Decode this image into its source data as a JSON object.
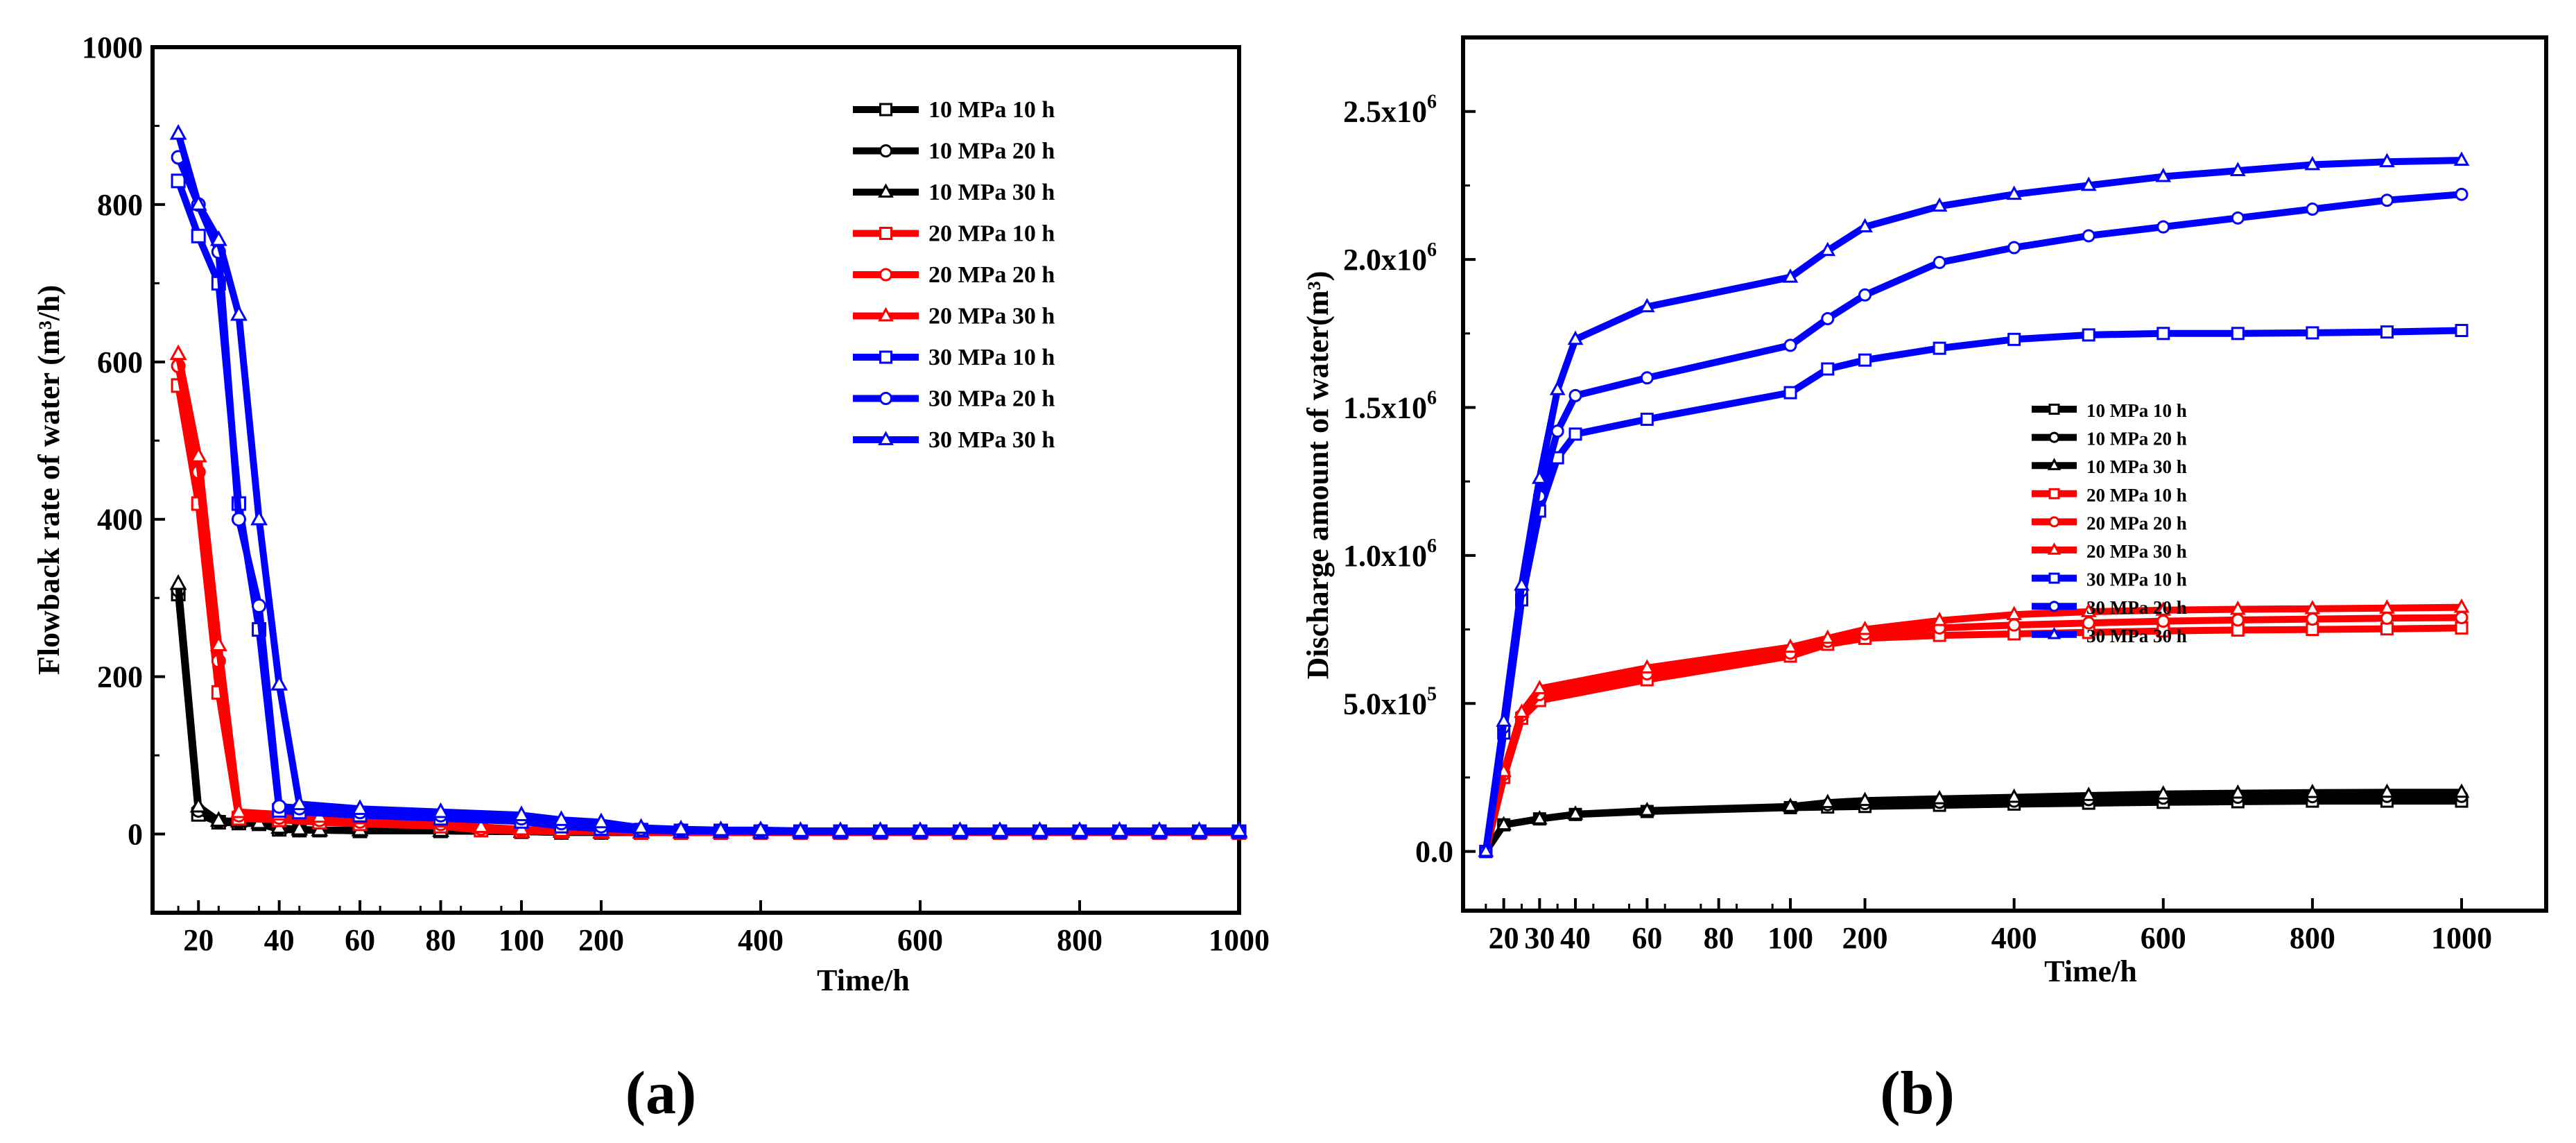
{
  "chart_data": [
    {
      "panel": "a",
      "type": "line",
      "caption": "(a)",
      "xlabel": "Time/h",
      "ylabel": "Flowback rate of water (m³/h)",
      "ylim": [
        -100,
        1000
      ],
      "x_ticks": [
        "20",
        "40",
        "60",
        "80",
        "100",
        "200",
        "400",
        "600",
        "800",
        "1000"
      ],
      "y_ticks": [
        "0",
        "200",
        "400",
        "600",
        "800",
        "1000"
      ],
      "x_note": "Broken x-axis: 10-100 h at linear scale, then 100-1000 h compressed",
      "series": [
        {
          "name": "10 MPa 10 h",
          "color": "#000000",
          "marker": "square",
          "x": [
            15,
            20,
            25,
            30,
            35,
            40,
            45,
            50,
            60,
            80,
            100,
            150,
            200,
            250,
            300,
            350,
            400,
            450,
            500,
            550,
            600,
            650,
            700,
            750,
            800,
            850,
            900,
            950,
            1000
          ],
          "y": [
            305,
            25,
            15,
            14,
            13,
            6,
            5,
            5,
            4,
            4,
            3,
            2,
            2,
            2,
            2,
            2,
            2,
            2,
            2,
            2,
            2,
            2,
            2,
            2,
            2,
            2,
            2,
            2,
            2
          ]
        },
        {
          "name": "10 MPa 20 h",
          "color": "#000000",
          "marker": "circle",
          "x": [
            15,
            20,
            25,
            30,
            35,
            40,
            45,
            50,
            60,
            80,
            100,
            150,
            200,
            250,
            300,
            350,
            400,
            450,
            500,
            550,
            600,
            650,
            700,
            750,
            800,
            850,
            900,
            950,
            1000
          ],
          "y": [
            310,
            30,
            16,
            15,
            13,
            7,
            5,
            5,
            4,
            4,
            3,
            2,
            2,
            2,
            2,
            2,
            2,
            2,
            2,
            2,
            2,
            2,
            2,
            2,
            2,
            2,
            2,
            2,
            2
          ]
        },
        {
          "name": "10 MPa 30 h",
          "color": "#000000",
          "marker": "triangle",
          "x": [
            15,
            20,
            25,
            30,
            35,
            40,
            45,
            50,
            60,
            80,
            100,
            150,
            200,
            250,
            300,
            350,
            400,
            450,
            500,
            550,
            600,
            650,
            700,
            750,
            800,
            850,
            900,
            950,
            1000
          ],
          "y": [
            318,
            35,
            17,
            16,
            14,
            8,
            6,
            5,
            5,
            4,
            3,
            3,
            2,
            2,
            2,
            2,
            2,
            2,
            2,
            2,
            2,
            2,
            2,
            2,
            2,
            2,
            2,
            2,
            2
          ]
        },
        {
          "name": "20 MPa 10 h",
          "color": "#ff0000",
          "marker": "square",
          "x": [
            15,
            20,
            25,
            30,
            40,
            50,
            60,
            80,
            90,
            100,
            150,
            200,
            250,
            300,
            350,
            400,
            450,
            500,
            550,
            600,
            650,
            700,
            750,
            800,
            850,
            900,
            950,
            1000
          ],
          "y": [
            570,
            420,
            180,
            20,
            18,
            15,
            13,
            10,
            5,
            4,
            3,
            3,
            2,
            2,
            2,
            2,
            2,
            2,
            2,
            2,
            2,
            2,
            2,
            2,
            2,
            2,
            2,
            2
          ]
        },
        {
          "name": "20 MPa 20 h",
          "color": "#ff0000",
          "marker": "circle",
          "x": [
            15,
            20,
            25,
            30,
            40,
            50,
            60,
            80,
            90,
            100,
            150,
            200,
            250,
            300,
            350,
            400,
            450,
            500,
            550,
            600,
            650,
            700,
            750,
            800,
            850,
            900,
            950,
            1000
          ],
          "y": [
            595,
            460,
            220,
            24,
            21,
            18,
            16,
            13,
            7,
            5,
            4,
            3,
            3,
            2,
            2,
            2,
            2,
            2,
            2,
            2,
            2,
            2,
            2,
            2,
            2,
            2,
            2,
            2
          ]
        },
        {
          "name": "20 MPa 30 h",
          "color": "#ff0000",
          "marker": "triangle",
          "x": [
            15,
            20,
            25,
            30,
            40,
            50,
            60,
            80,
            90,
            100,
            150,
            200,
            250,
            300,
            350,
            400,
            450,
            500,
            550,
            600,
            650,
            700,
            750,
            800,
            850,
            900,
            950,
            1000
          ],
          "y": [
            610,
            480,
            240,
            28,
            25,
            22,
            20,
            16,
            9,
            6,
            4,
            3,
            3,
            2,
            2,
            2,
            2,
            2,
            2,
            2,
            2,
            2,
            2,
            2,
            2,
            2,
            2,
            2
          ]
        },
        {
          "name": "30 MPa 10 h",
          "color": "#0000ff",
          "marker": "square",
          "x": [
            15,
            20,
            25,
            30,
            35,
            40,
            45,
            60,
            80,
            100,
            150,
            200,
            250,
            300,
            350,
            400,
            450,
            500,
            550,
            600,
            650,
            700,
            750,
            800,
            850,
            900,
            950,
            1000
          ],
          "y": [
            830,
            760,
            700,
            420,
            260,
            30,
            28,
            24,
            20,
            16,
            10,
            7,
            5,
            4,
            4,
            3,
            3,
            3,
            3,
            3,
            3,
            3,
            3,
            3,
            3,
            3,
            3,
            3
          ]
        },
        {
          "name": "30 MPa 20 h",
          "color": "#0000ff",
          "marker": "circle",
          "x": [
            15,
            20,
            25,
            30,
            35,
            40,
            45,
            60,
            80,
            100,
            150,
            200,
            250,
            300,
            350,
            400,
            450,
            500,
            550,
            600,
            650,
            700,
            750,
            800,
            850,
            900,
            950,
            1000
          ],
          "y": [
            860,
            800,
            740,
            400,
            290,
            35,
            33,
            28,
            24,
            20,
            14,
            10,
            6,
            5,
            4,
            4,
            3,
            3,
            3,
            3,
            3,
            3,
            3,
            3,
            3,
            3,
            3,
            3
          ]
        },
        {
          "name": "30 MPa 30 h",
          "color": "#0000ff",
          "marker": "triangle",
          "x": [
            15,
            20,
            25,
            30,
            35,
            40,
            45,
            60,
            80,
            100,
            150,
            200,
            250,
            300,
            350,
            400,
            450,
            500,
            550,
            600,
            650,
            700,
            750,
            800,
            850,
            900,
            950,
            1000
          ],
          "y": [
            890,
            800,
            755,
            660,
            400,
            190,
            38,
            32,
            28,
            24,
            18,
            15,
            8,
            6,
            5,
            5,
            4,
            4,
            4,
            4,
            4,
            4,
            4,
            4,
            4,
            4,
            4,
            4
          ]
        }
      ]
    },
    {
      "panel": "b",
      "type": "line",
      "caption": "(b)",
      "xlabel": "Time/h",
      "ylabel": "Discharge amount of water(m³)",
      "ylim": [
        -200000,
        2750000
      ],
      "x_ticks": [
        "20",
        "30",
        "40",
        "60",
        "80",
        "100",
        "200",
        "400",
        "600",
        "800",
        "1000"
      ],
      "y_ticks": [
        {
          "value": 0,
          "label": "0.0"
        },
        {
          "value": 500000,
          "label": "5.0x10",
          "exp": "5"
        },
        {
          "value": 1000000,
          "label": "1.0x10",
          "exp": "6"
        },
        {
          "value": 1500000,
          "label": "1.5x10",
          "exp": "6"
        },
        {
          "value": 2000000,
          "label": "2.0x10",
          "exp": "6"
        },
        {
          "value": 2500000,
          "label": "2.5x10",
          "exp": "6"
        }
      ],
      "x_note": "Broken x-axis: 10-100 h at linear scale, then 100-1000 h compressed",
      "series": [
        {
          "name": "10 MPa 10 h",
          "color": "#000000",
          "marker": "square",
          "x": [
            15,
            20,
            30,
            40,
            60,
            100,
            150,
            200,
            300,
            400,
            500,
            600,
            700,
            800,
            900,
            1000
          ],
          "y": [
            0,
            90000,
            110000,
            125000,
            135000,
            148000,
            150000,
            152000,
            156000,
            160000,
            163000,
            166000,
            168000,
            170000,
            170000,
            170000
          ]
        },
        {
          "name": "10 MPa 20 h",
          "color": "#000000",
          "marker": "circle",
          "x": [
            15,
            20,
            30,
            40,
            60,
            100,
            150,
            200,
            300,
            400,
            500,
            600,
            700,
            800,
            900,
            1000
          ],
          "y": [
            0,
            90000,
            110000,
            125000,
            136000,
            150000,
            158000,
            162000,
            166000,
            170000,
            175000,
            180000,
            183000,
            185000,
            186000,
            186000
          ]
        },
        {
          "name": "10 MPa 30 h",
          "color": "#000000",
          "marker": "triangle",
          "x": [
            15,
            20,
            30,
            40,
            60,
            100,
            150,
            200,
            300,
            400,
            500,
            600,
            700,
            800,
            900,
            1000
          ],
          "y": [
            0,
            90000,
            110000,
            126000,
            138000,
            152000,
            165000,
            172000,
            178000,
            183000,
            189000,
            194000,
            197000,
            199000,
            200000,
            200000
          ]
        },
        {
          "name": "20 MPa 10 h",
          "color": "#ff0000",
          "marker": "square",
          "x": [
            15,
            20,
            25,
            30,
            60,
            100,
            150,
            200,
            300,
            400,
            500,
            600,
            700,
            800,
            900,
            1000
          ],
          "y": [
            0,
            250000,
            450000,
            510000,
            580000,
            660000,
            700000,
            720000,
            730000,
            735000,
            740000,
            745000,
            748000,
            750000,
            752000,
            755000
          ]
        },
        {
          "name": "20 MPa 20 h",
          "color": "#ff0000",
          "marker": "circle",
          "x": [
            15,
            20,
            25,
            30,
            60,
            100,
            150,
            200,
            300,
            400,
            500,
            600,
            700,
            800,
            900,
            1000
          ],
          "y": [
            0,
            260000,
            460000,
            530000,
            600000,
            670000,
            710000,
            735000,
            755000,
            765000,
            772000,
            778000,
            782000,
            785000,
            788000,
            790000
          ]
        },
        {
          "name": "20 MPa 30 h",
          "color": "#ff0000",
          "marker": "triangle",
          "x": [
            15,
            20,
            25,
            30,
            60,
            100,
            150,
            200,
            300,
            400,
            500,
            600,
            700,
            800,
            900,
            1000
          ],
          "y": [
            0,
            270000,
            470000,
            550000,
            620000,
            690000,
            720000,
            750000,
            780000,
            800000,
            810000,
            815000,
            818000,
            820000,
            822000,
            825000
          ]
        },
        {
          "name": "30 MPa 10 h",
          "color": "#0000ff",
          "marker": "square",
          "x": [
            15,
            20,
            25,
            30,
            35,
            40,
            60,
            100,
            150,
            200,
            300,
            400,
            500,
            600,
            700,
            800,
            900,
            1000
          ],
          "y": [
            0,
            400000,
            850000,
            1150000,
            1330000,
            1410000,
            1460000,
            1550000,
            1630000,
            1660000,
            1700000,
            1730000,
            1745000,
            1750000,
            1750000,
            1752000,
            1755000,
            1760000
          ]
        },
        {
          "name": "30 MPa 20 h",
          "color": "#0000ff",
          "marker": "circle",
          "x": [
            15,
            20,
            25,
            30,
            35,
            40,
            60,
            100,
            150,
            200,
            300,
            400,
            500,
            600,
            700,
            800,
            900,
            1000
          ],
          "y": [
            0,
            420000,
            880000,
            1200000,
            1420000,
            1540000,
            1600000,
            1710000,
            1800000,
            1880000,
            1990000,
            2040000,
            2080000,
            2110000,
            2140000,
            2170000,
            2200000,
            2220000
          ]
        },
        {
          "name": "30 MPa 30 h",
          "color": "#0000ff",
          "marker": "triangle",
          "x": [
            15,
            20,
            25,
            30,
            35,
            40,
            60,
            100,
            150,
            200,
            300,
            400,
            500,
            600,
            700,
            800,
            900,
            1000
          ],
          "y": [
            0,
            440000,
            900000,
            1260000,
            1560000,
            1730000,
            1840000,
            1940000,
            2030000,
            2110000,
            2180000,
            2220000,
            2250000,
            2280000,
            2300000,
            2320000,
            2330000,
            2335000
          ]
        }
      ]
    }
  ]
}
